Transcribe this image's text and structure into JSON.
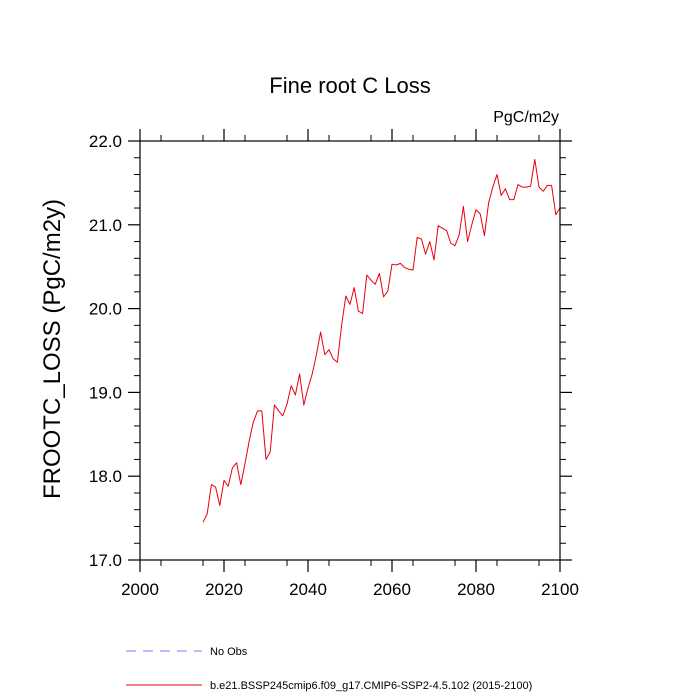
{
  "chart_data": {
    "type": "line",
    "title": "Fine root C Loss",
    "units": "PgC/m2y",
    "xlabel": "",
    "ylabel": "FROOTC_LOSS  (PgC/m2y)",
    "xlim": [
      2000,
      2100
    ],
    "ylim": [
      17.0,
      22.0
    ],
    "x_ticks": [
      2000,
      2020,
      2040,
      2060,
      2080,
      2100
    ],
    "y_ticks": [
      "17.0",
      "18.0",
      "19.0",
      "20.0",
      "21.0",
      "22.0"
    ],
    "grid": false,
    "legend_position": "bottom-left",
    "series": [
      {
        "name": "No Obs",
        "color": "#7b7bff",
        "style": "dashed",
        "x": [],
        "values": []
      },
      {
        "name": "b.e21.BSSP245cmip6.f09_g17.CMIP6-SSP2-4.5.102 (2015-2100)",
        "color": "#e8000b",
        "style": "solid",
        "x": [
          2015,
          2016,
          2017,
          2018,
          2019,
          2020,
          2021,
          2022,
          2023,
          2024,
          2025,
          2026,
          2027,
          2028,
          2029,
          2030,
          2031,
          2032,
          2033,
          2034,
          2035,
          2036,
          2037,
          2038,
          2039,
          2040,
          2041,
          2042,
          2043,
          2044,
          2045,
          2046,
          2047,
          2048,
          2049,
          2050,
          2051,
          2052,
          2053,
          2054,
          2055,
          2056,
          2057,
          2058,
          2059,
          2060,
          2061,
          2062,
          2063,
          2064,
          2065,
          2066,
          2067,
          2068,
          2069,
          2070,
          2071,
          2072,
          2073,
          2074,
          2075,
          2076,
          2077,
          2078,
          2079,
          2080,
          2081,
          2082,
          2083,
          2084,
          2085,
          2086,
          2087,
          2088,
          2089,
          2090,
          2091,
          2092,
          2093,
          2094,
          2095,
          2096,
          2097,
          2098,
          2099,
          2100
        ],
        "values": [
          17.45,
          17.55,
          17.9,
          17.87,
          17.65,
          17.95,
          17.88,
          18.1,
          18.16,
          17.9,
          18.15,
          18.42,
          18.65,
          18.78,
          18.78,
          18.2,
          18.29,
          18.85,
          18.78,
          18.72,
          18.86,
          19.08,
          18.97,
          19.22,
          18.85,
          19.05,
          19.22,
          19.45,
          19.72,
          19.45,
          19.51,
          19.4,
          19.36,
          19.8,
          20.15,
          20.05,
          20.25,
          19.97,
          19.94,
          20.4,
          20.34,
          20.29,
          20.42,
          20.14,
          20.21,
          20.53,
          20.52,
          20.54,
          20.49,
          20.47,
          20.46,
          20.85,
          20.83,
          20.65,
          20.8,
          20.58,
          20.99,
          20.96,
          20.93,
          20.78,
          20.75,
          20.88,
          21.22,
          20.8,
          21.0,
          21.18,
          21.13,
          20.87,
          21.26,
          21.45,
          21.6,
          21.35,
          21.43,
          21.3,
          21.3,
          21.48,
          21.45,
          21.45,
          21.46,
          21.78,
          21.45,
          21.4,
          21.47,
          21.47,
          21.12,
          21.2
        ]
      }
    ]
  }
}
